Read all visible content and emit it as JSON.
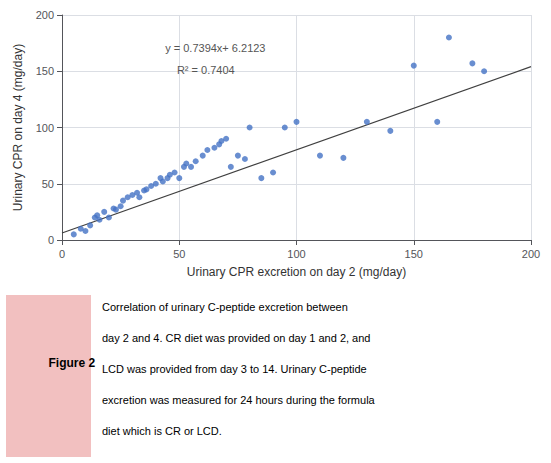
{
  "chart_data": {
    "type": "scatter",
    "xlabel": "Urinary CPR excretion on day 2 (mg/day)",
    "ylabel": "Urinary CPR on day 4 (mg/day)",
    "xlim": [
      0,
      200
    ],
    "ylim": [
      0,
      200
    ],
    "xticks": [
      0,
      50,
      100,
      150,
      200
    ],
    "yticks": [
      0,
      50,
      100,
      150,
      200
    ],
    "grid": true,
    "series": [
      {
        "type": "scatter",
        "color": "#4472C4",
        "marker": "circle",
        "x": [
          5,
          8,
          10,
          12,
          14,
          15,
          16,
          18,
          20,
          22,
          23,
          25,
          26,
          28,
          30,
          32,
          33,
          35,
          36,
          38,
          40,
          42,
          43,
          45,
          46,
          48,
          50,
          52,
          53,
          55,
          57,
          60,
          62,
          65,
          67,
          68,
          70,
          72,
          75,
          78,
          80,
          85,
          90,
          95,
          100,
          110,
          120,
          130,
          140,
          150,
          160,
          165,
          175,
          180
        ],
        "values": [
          5,
          10,
          8,
          13,
          20,
          22,
          18,
          25,
          20,
          28,
          27,
          30,
          35,
          38,
          40,
          42,
          38,
          44,
          45,
          48,
          50,
          55,
          52,
          55,
          58,
          60,
          55,
          65,
          68,
          65,
          70,
          75,
          80,
          82,
          85,
          88,
          90,
          65,
          75,
          72,
          100,
          55,
          60,
          100,
          105,
          75,
          73,
          105,
          97,
          155,
          105,
          180,
          157,
          150
        ]
      },
      {
        "type": "line",
        "color": "#404040",
        "line_style": "solid",
        "x": [
          0,
          200
        ],
        "values": [
          6.2123,
          154.0923
        ]
      }
    ],
    "annotations": [
      "y = 0.7394x+ 6.2123",
      "R² = 0.7404"
    ],
    "figure_label": {
      "text": "Figure 2",
      "color": "#f2c0c0"
    },
    "caption": [
      "Correlation of urinary C-peptide excretion between",
      "day 2 and 4. CR diet was provided on day 1 and 2, and",
      "LCD was provided from day 3 to 14. Urinary C-peptide",
      "excretion was measured for 24 hours during the formula",
      "diet which is CR or LCD."
    ]
  }
}
